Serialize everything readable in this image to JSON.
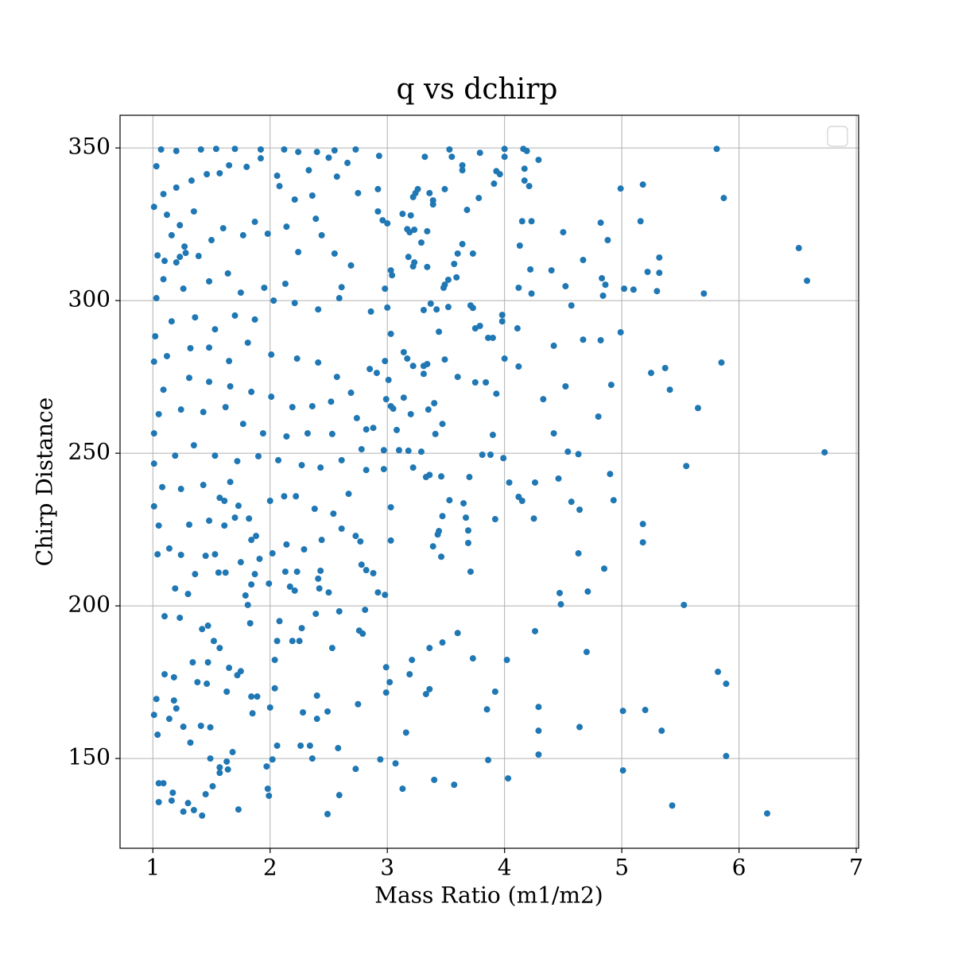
{
  "chart_data": {
    "type": "scatter",
    "title": "q vs dchirp",
    "x_label": "Mass Ratio (m1/m2)",
    "y_label": "Chirp Distance",
    "color": "#1f77b4",
    "grid": true,
    "xlim": [
      0.72,
      7.02
    ],
    "ylim": [
      120.6,
      360.7
    ],
    "xticks": [
      1,
      2,
      3,
      4,
      5,
      6,
      7
    ],
    "yticks": [
      150,
      200,
      250,
      300,
      350
    ],
    "x": [
      5.81,
      6.51,
      6.58,
      6.73,
      6.24,
      5.85,
      5.65,
      5.7,
      5.55,
      5.53,
      5.82,
      5.89,
      5.89,
      5.43,
      5.87,
      5.34,
      5.2,
      5.01,
      5.01,
      5.18,
      5.18,
      5.41,
      5.37,
      5.25,
      4.99,
      5.18,
      5.16,
      5.32,
      5.32,
      5.22,
      5.3,
      5.1,
      5.02,
      4.99,
      4.93,
      4.9,
      4.91,
      4.85,
      4.7,
      4.71,
      4.8,
      4.88,
      4.86,
      4.84,
      4.83,
      4.82,
      4.82,
      4.67,
      4.67,
      4.57,
      4.52,
      4.5,
      4.52,
      4.54,
      4.63,
      4.57,
      4.64,
      4.63,
      4.47,
      4.48,
      4.64,
      4.46,
      4.42,
      4.42,
      4.4,
      4.33,
      4.26,
      4.25,
      4.26,
      4.29,
      4.29,
      4.29,
      4.15,
      4.12,
      4.04,
      4.13,
      4.15,
      4.23,
      4.22,
      4.23,
      4.12,
      4.11,
      4.12,
      4.29,
      4.19,
      4.16,
      4.17,
      4.17,
      4.21,
      4.0,
      4.0,
      3.93,
      3.96,
      3.91,
      3.78,
      3.79,
      3.68,
      3.73,
      3.64,
      3.6,
      3.57,
      3.59,
      3.52,
      3.49,
      3.48,
      3.71,
      3.73,
      3.75,
      3.79,
      3.86,
      3.9,
      3.98,
      3.98,
      4.0,
      3.6,
      3.75,
      3.84,
      3.93,
      3.9,
      3.81,
      3.88,
      3.99,
      3.7,
      3.65,
      3.67,
      3.69,
      3.69,
      3.71,
      3.92,
      3.73,
      4.02,
      3.92,
      3.85,
      3.86,
      4.03,
      3.57,
      3.4,
      3.6,
      3.47,
      3.36,
      3.36,
      3.33,
      3.21,
      3.19,
      3.16,
      3.13,
      3.07,
      3.02,
      2.99,
      2.99,
      2.94,
      3.46,
      3.44,
      3.43,
      3.39,
      3.47,
      3.53,
      3.46,
      3.36,
      3.33,
      3.22,
      3.18,
      3.29,
      3.41,
      3.47,
      3.35,
      3.4,
      3.2,
      3.31,
      3.31,
      3.34,
      3.49,
      3.14,
      3.17,
      3.22,
      3.31,
      3.37,
      3.42,
      3.44,
      3.52,
      3.22,
      3.23,
      3.18,
      3.34,
      3.29,
      3.23,
      3.19,
      3.17,
      3.22,
      3.24,
      3.26,
      3.36,
      3.39,
      3.39,
      3.34,
      3.49,
      3.32,
      3.53,
      3.55,
      3.64,
      3.64,
      3.13,
      3.2,
      2.93,
      2.92,
      2.75,
      2.92,
      3.0,
      2.96,
      3.03,
      3.04,
      2.98,
      3.0,
      2.86,
      3.03,
      2.98,
      2.85,
      2.91,
      3.01,
      2.99,
      3.03,
      3.05,
      3.14,
      2.97,
      2.97,
      2.78,
      2.82,
      2.82,
      2.88,
      2.74,
      3.03,
      3.03,
      3.08,
      3.1,
      2.73,
      2.77,
      2.78,
      2.82,
      2.88,
      2.92,
      2.98,
      2.81,
      2.76,
      2.79,
      2.75,
      2.49,
      2.59,
      2.58,
      1.73,
      1.42,
      1.35,
      1.26,
      1.05,
      1.98,
      1.99,
      2.73,
      2.36,
      2.34,
      2.06,
      2.02,
      1.97,
      2.26,
      2.49,
      2.28,
      2.4,
      2.4,
      2.04,
      2.0,
      1.84,
      1.89,
      1.85,
      1.72,
      1.65,
      1.75,
      2.04,
      2.06,
      2.08,
      2.19,
      2.25,
      2.27,
      2.39,
      2.59,
      2.53,
      2.5,
      2.42,
      2.41,
      2.43,
      2.23,
      2.13,
      2.21,
      2.17,
      1.99,
      1.81,
      1.83,
      1.79,
      1.84,
      1.87,
      1.91,
      1.88,
      1.84,
      1.82,
      1.7,
      1.73,
      1.66,
      1.57,
      1.48,
      1.61,
      1.53,
      1.56,
      1.36,
      1.3,
      1.19,
      1.1,
      1.23,
      1.42,
      1.47,
      1.52,
      1.57,
      1.34,
      1.47,
      1.18,
      1.1,
      1.03,
      1.18,
      1.38,
      1.46,
      1.63,
      1.2,
      1.14,
      1.01,
      1.04,
      1.26,
      1.41,
      1.49,
      1.32,
      1.49,
      1.63,
      1.64,
      1.57,
      1.68,
      1.05,
      1.09,
      1.17,
      1.16,
      1.3,
      1.45,
      1.57,
      1.51,
      1.07,
      1.2,
      1.41,
      1.54,
      1.7,
      1.92,
      2.12,
      2.24,
      2.4,
      2.55,
      2.73,
      1.92,
      1.8,
      1.65,
      1.57,
      1.46,
      1.33,
      1.2,
      1.09,
      2.06,
      2.08,
      2.21,
      2.36,
      2.57,
      2.66,
      2.5,
      2.33,
      2.39,
      2.14,
      1.98,
      1.87,
      1.77,
      1.6,
      1.5,
      1.39,
      1.27,
      1.16,
      1.04,
      1.09,
      1.26,
      1.48,
      1.64,
      1.75,
      1.95,
      2.13,
      2.24,
      2.44,
      2.55,
      2.69,
      2.61,
      2.59,
      2.41,
      2.21,
      2.03,
      1.87,
      1.7,
      1.53,
      1.36,
      1.16,
      1.02,
      1.12,
      1.32,
      1.48,
      1.65,
      1.81,
      2.01,
      2.23,
      2.41,
      2.57,
      2.69,
      2.52,
      2.36,
      2.19,
      2.01,
      1.84,
      1.66,
      1.48,
      1.31,
      1.09,
      1.05,
      1.24,
      1.43,
      1.62,
      1.77,
      1.94,
      2.14,
      2.32,
      2.53,
      2.61,
      2.43,
      2.27,
      2.07,
      1.9,
      1.72,
      1.53,
      1.35,
      1.19,
      1.01,
      1.08,
      1.24,
      1.43,
      1.61,
      2.0,
      2.12,
      2.22,
      2.38,
      2.54,
      2.67,
      2.61,
      2.44,
      2.29,
      2.14,
      2.02,
      1.75,
      1.62,
      1.45,
      1.24,
      1.04,
      1.14,
      1.31,
      1.05,
      1.01,
      1.01,
      1.01,
      1.03,
      1.01,
      1.03,
      1.12,
      1.35,
      1.23,
      1.23,
      1.2,
      1.28,
      1.1
    ],
    "values": [
      349.7,
      317.2,
      306.5,
      250.3,
      132.0,
      279.7,
      264.8,
      302.3,
      245.8,
      200.3,
      178.4,
      174.5,
      150.8,
      134.6,
      333.6,
      159.1,
      165.9,
      165.6,
      146.1,
      226.8,
      220.8,
      270.8,
      277.9,
      276.3,
      336.7,
      338.0,
      326.0,
      314.1,
      309.1,
      309.4,
      303.1,
      303.6,
      303.9,
      289.6,
      234.6,
      243.2,
      272.4,
      212.2,
      184.9,
      204.7,
      262.0,
      319.8,
      305.2,
      301.6,
      307.3,
      325.5,
      287.0,
      287.2,
      313.3,
      298.4,
      304.7,
      322.4,
      271.9,
      250.5,
      249.7,
      234.1,
      231.5,
      217.2,
      204.2,
      200.5,
      160.3,
      241.7,
      256.5,
      285.2,
      309.9,
      267.7,
      240.4,
      228.6,
      191.7,
      166.9,
      159.1,
      151.3,
      234.4,
      235.7,
      240.4,
      318.0,
      326.0,
      326.0,
      310.2,
      302.3,
      304.2,
      290.9,
      278.4,
      346.1,
      349.0,
      349.7,
      343.2,
      339.3,
      337.5,
      349.7,
      347.1,
      342.4,
      341.4,
      338.3,
      333.6,
      348.4,
      329.7,
      315.4,
      318.5,
      315.4,
      312.0,
      307.6,
      306.8,
      305.2,
      304.2,
      298.4,
      297.6,
      290.9,
      291.7,
      287.8,
      287.8,
      295.3,
      293.2,
      281.0,
      275.0,
      273.2,
      273.2,
      269.5,
      256.0,
      249.5,
      249.5,
      248.4,
      242.2,
      233.6,
      228.9,
      224.7,
      220.6,
      211.2,
      228.4,
      182.8,
      182.3,
      171.9,
      166.1,
      149.5,
      143.5,
      141.4,
      143.0,
      191.1,
      188.0,
      186.2,
      172.7,
      171.1,
      182.3,
      177.6,
      158.5,
      140.1,
      148.4,
      175.0,
      179.9,
      171.6,
      149.7,
      216.1,
      224.5,
      223.4,
      219.5,
      229.4,
      234.6,
      242.4,
      242.9,
      242.2,
      245.3,
      250.8,
      250.5,
      256.3,
      259.6,
      264.3,
      266.4,
      262.8,
      276.0,
      278.6,
      279.2,
      280.7,
      283.1,
      281.0,
      278.6,
      296.9,
      299.0,
      297.1,
      289.8,
      297.9,
      311.2,
      312.5,
      314.3,
      311.0,
      319.0,
      323.2,
      322.4,
      323.4,
      333.9,
      335.2,
      336.5,
      335.2,
      331.5,
      332.8,
      322.7,
      336.5,
      347.1,
      349.5,
      347.1,
      344.3,
      342.7,
      328.4,
      327.9,
      347.4,
      336.5,
      335.2,
      329.2,
      325.3,
      326.3,
      309.9,
      308.3,
      303.9,
      297.7,
      296.4,
      289.1,
      280.2,
      277.6,
      276.3,
      274.0,
      267.7,
      265.4,
      264.6,
      268.2,
      251.0,
      244.8,
      251.3,
      244.5,
      257.8,
      258.3,
      261.5,
      232.3,
      221.4,
      257.6,
      251.0,
      222.9,
      221.1,
      213.5,
      211.7,
      210.7,
      204.4,
      203.6,
      198.7,
      191.9,
      190.9,
      167.8,
      131.8,
      138.0,
      153.4,
      133.3,
      131.3,
      133.1,
      132.6,
      135.7,
      140.1,
      137.8,
      146.6,
      150.0,
      154.2,
      154.2,
      149.7,
      147.4,
      154.2,
      165.4,
      165.1,
      163.0,
      170.6,
      173.0,
      166.7,
      170.3,
      170.3,
      164.8,
      177.3,
      179.7,
      178.6,
      182.3,
      188.5,
      195.0,
      188.5,
      188.5,
      192.7,
      197.4,
      198.2,
      186.2,
      204.4,
      205.7,
      208.9,
      211.5,
      211.2,
      211.2,
      205.0,
      206.3,
      207.3,
      200.3,
      194.3,
      203.4,
      207.0,
      210.4,
      215.4,
      222.9,
      221.6,
      228.6,
      228.9,
      232.8,
      240.6,
      235.4,
      227.9,
      226.3,
      216.9,
      210.9,
      210.4,
      203.9,
      205.7,
      196.6,
      196.1,
      192.4,
      193.5,
      188.5,
      186.2,
      181.5,
      181.5,
      176.6,
      177.6,
      169.5,
      169.0,
      175.0,
      174.5,
      171.9,
      166.4,
      163.0,
      164.3,
      157.8,
      160.4,
      160.7,
      160.2,
      155.2,
      150.0,
      149.0,
      146.4,
      147.1,
      152.1,
      141.9,
      141.9,
      138.8,
      136.2,
      135.4,
      138.3,
      145.3,
      140.9,
      349.5,
      349.0,
      349.5,
      349.7,
      349.7,
      349.5,
      349.5,
      348.7,
      348.7,
      349.2,
      349.5,
      346.6,
      343.8,
      344.3,
      341.7,
      341.4,
      339.3,
      337.0,
      334.9,
      340.9,
      337.5,
      333.1,
      334.4,
      340.6,
      345.1,
      346.8,
      342.7,
      326.8,
      324.2,
      321.9,
      325.8,
      321.4,
      323.7,
      319.8,
      314.6,
      317.7,
      321.4,
      314.8,
      307.0,
      303.9,
      306.3,
      308.9,
      302.6,
      304.2,
      305.5,
      315.9,
      321.4,
      315.4,
      311.5,
      304.4,
      300.8,
      297.1,
      299.2,
      300.0,
      293.8,
      295.1,
      290.6,
      294.5,
      293.2,
      288.3,
      281.8,
      284.4,
      284.6,
      280.2,
      286.2,
      282.3,
      281.0,
      279.7,
      275.0,
      269.8,
      266.9,
      265.4,
      265.1,
      268.5,
      270.1,
      271.9,
      273.4,
      274.7,
      270.8,
      262.8,
      264.3,
      263.5,
      265.1,
      259.6,
      256.5,
      255.5,
      256.5,
      256.3,
      247.7,
      245.3,
      246.1,
      247.7,
      249.0,
      247.4,
      249.2,
      252.6,
      249.2,
      246.6,
      238.9,
      238.3,
      239.6,
      234.4,
      234.4,
      235.9,
      235.9,
      231.8,
      230.2,
      236.7,
      225.3,
      221.6,
      218.5,
      220.1,
      217.2,
      214.3,
      210.9,
      216.4,
      216.7,
      216.9,
      218.8,
      226.6,
      226.3,
      232.6,
      256.5,
      280.0,
      300.8,
      330.7,
      344.0,
      328.1,
      329.2,
      324.7,
      314.3,
      312.5,
      315.6,
      313.0
    ]
  }
}
